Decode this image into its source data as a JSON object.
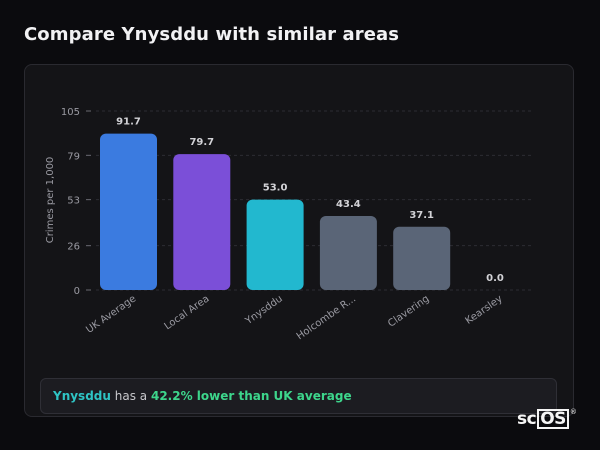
{
  "header": {
    "title": "Compare Ynysddu with similar areas"
  },
  "chart_data": {
    "type": "bar",
    "title": "",
    "xlabel": "",
    "ylabel": "Crimes per 1,000",
    "ylim": [
      0,
      105
    ],
    "yticks": [
      "0",
      "26",
      "53",
      "79",
      "105"
    ],
    "ytick_values": [
      0,
      26,
      53,
      79,
      105
    ],
    "grid": true,
    "categories": [
      "UK Average",
      "Local Area",
      "Ynysddu",
      "Holcombe R...",
      "Clavering",
      "Kearsley"
    ],
    "values": [
      91.7,
      79.7,
      53.0,
      43.4,
      37.1,
      0.0
    ],
    "value_labels": [
      "91.7",
      "79.7",
      "53.0",
      "43.4",
      "37.1",
      "0.0"
    ],
    "colors": [
      "#3b7be0",
      "#7b4fd8",
      "#22b8cf",
      "#5a6577",
      "#5a6577",
      "#5a6577"
    ]
  },
  "summary": {
    "area": "Ynysddu",
    "middle": "has a",
    "pct": "42.2% lower than UK average"
  },
  "logo": {
    "text": "sc",
    "boxed": "OS",
    "mark": "®"
  }
}
